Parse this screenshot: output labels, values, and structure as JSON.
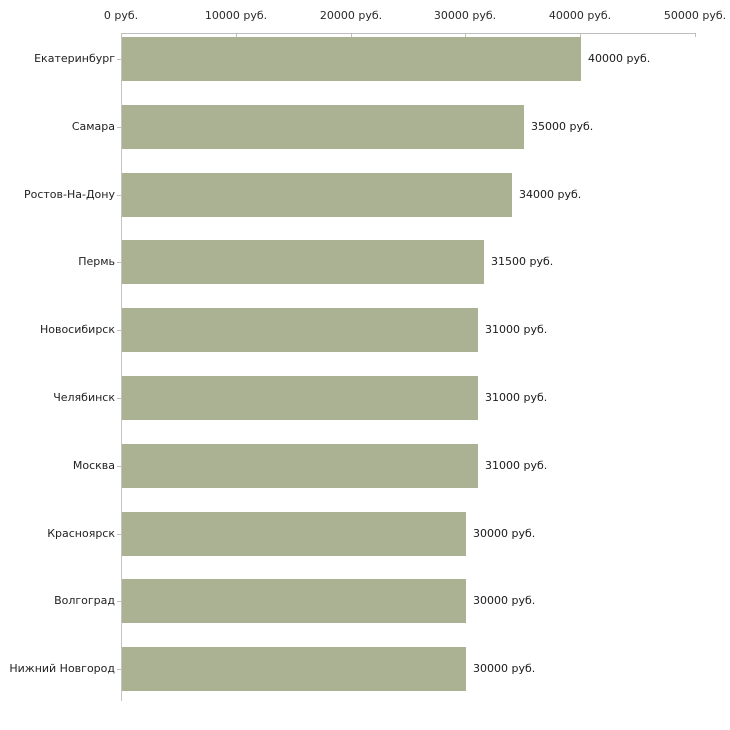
{
  "chart_data": {
    "type": "bar",
    "orientation": "horizontal",
    "title": "",
    "xlabel": "",
    "ylabel": "",
    "unit": "руб.",
    "xlim": [
      0,
      50000
    ],
    "x_ticks": [
      "0 руб.",
      "10000 руб.",
      "20000 руб.",
      "30000 руб.",
      "40000 руб.",
      "50000 руб."
    ],
    "grid": false,
    "legend": false,
    "categories": [
      "Екатеринбург",
      "Самара",
      "Ростов-На-Дону",
      "Пермь",
      "Новосибирск",
      "Челябинск",
      "Москва",
      "Красноярск",
      "Волгоград",
      "Нижний Новгород"
    ],
    "values": [
      40000,
      35000,
      34000,
      31500,
      31000,
      31000,
      31000,
      30000,
      30000,
      30000
    ],
    "value_labels": [
      "40000 руб.",
      "35000 руб.",
      "34000 руб.",
      "31500 руб.",
      "31000 руб.",
      "31000 руб.",
      "31000 руб.",
      "30000 руб.",
      "30000 руб.",
      "30000 руб."
    ],
    "bar_color": "#abb294",
    "axis_line_color": "#bdbdbd",
    "tick_color": "#c2c2b0",
    "text_color": "#222222",
    "background_color": "#ffffff"
  }
}
